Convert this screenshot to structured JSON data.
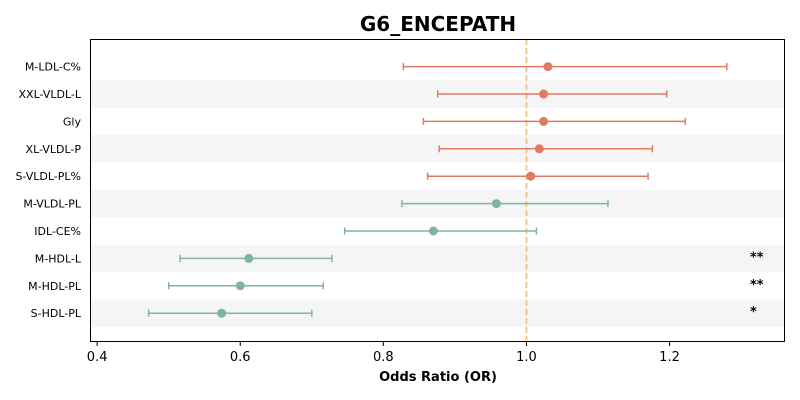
{
  "chart_data": {
    "type": "forest",
    "title": "G6_ENCEPATH",
    "xlabel": "Odds Ratio (OR)",
    "xlim": [
      0.39,
      1.36
    ],
    "xticks": [
      0.4,
      0.6,
      0.8,
      1.0,
      1.2
    ],
    "xtick_labels": [
      "0.4",
      "0.6",
      "0.8",
      "1.0",
      "1.2"
    ],
    "reference_line": 1.0,
    "colors": {
      "above_one": "#e07b61",
      "below_one": "#7fb59a",
      "reference": "#f4c283",
      "stripe": "#f5f5f5"
    },
    "rows": [
      {
        "label": "M-LDL-C%",
        "or": 1.03,
        "lo": 0.828,
        "hi": 1.28,
        "sig": ""
      },
      {
        "label": "XXL-VLDL-L",
        "or": 1.024,
        "lo": 0.876,
        "hi": 1.196,
        "sig": ""
      },
      {
        "label": "Gly",
        "or": 1.024,
        "lo": 0.856,
        "hi": 1.222,
        "sig": ""
      },
      {
        "label": "XL-VLDL-P",
        "or": 1.018,
        "lo": 0.878,
        "hi": 1.176,
        "sig": ""
      },
      {
        "label": "S-VLDL-PL%",
        "or": 1.006,
        "lo": 0.862,
        "hi": 1.17,
        "sig": ""
      },
      {
        "label": "M-VLDL-PL",
        "or": 0.958,
        "lo": 0.826,
        "hi": 1.114,
        "sig": ""
      },
      {
        "label": "IDL-CE%",
        "or": 0.87,
        "lo": 0.746,
        "hi": 1.014,
        "sig": ""
      },
      {
        "label": "M-HDL-L",
        "or": 0.612,
        "lo": 0.516,
        "hi": 0.728,
        "sig": "**"
      },
      {
        "label": "M-HDL-PL",
        "or": 0.6,
        "lo": 0.5,
        "hi": 0.716,
        "sig": "**"
      },
      {
        "label": "S-HDL-PL",
        "or": 0.574,
        "lo": 0.472,
        "hi": 0.7,
        "sig": "*"
      }
    ]
  }
}
